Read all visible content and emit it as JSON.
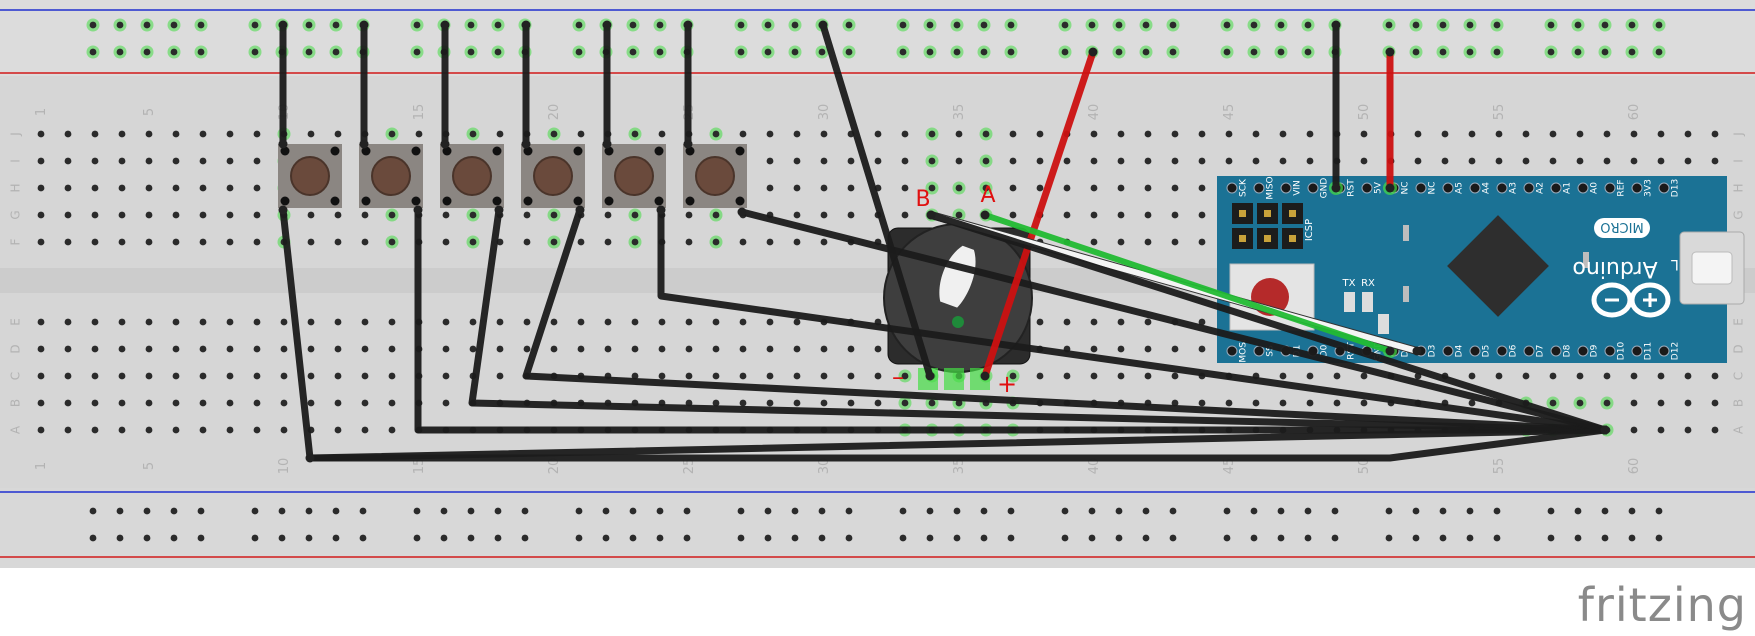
{
  "app": {
    "logo_text": "fritzing"
  },
  "colors": {
    "board": "#dcdcdc",
    "rail_blue": "#1f2fcf",
    "rail_red": "#d11a1a",
    "hole": "#2b2b2b",
    "hole_highlight": "#44dd44",
    "wire_black": "#1b1b1b",
    "wire_red": "#cc1111",
    "wire_green": "#22bb33",
    "wire_white": "#ffffff",
    "arduino": "#1b7295",
    "button_body": "#8b8682",
    "button_cap": "#6a4a3c"
  },
  "breadboard": {
    "column_numbers": [
      "1",
      "5",
      "10",
      "15",
      "20",
      "25",
      "30",
      "35",
      "40",
      "45",
      "50",
      "55",
      "60"
    ],
    "row_letters_top": [
      "J",
      "I",
      "H",
      "G",
      "F"
    ],
    "row_letters_bottom": [
      "E",
      "D",
      "C",
      "B",
      "A"
    ]
  },
  "encoder": {
    "pin_label_a": "A",
    "pin_label_b": "B",
    "minus_label": "–",
    "plus_label": "+"
  },
  "arduino": {
    "label_brand": "Arduino",
    "label_model": "MICRO",
    "label_icsp": "ICSP",
    "label_l": "L",
    "label_tx": "TX",
    "label_rx": "RX",
    "pins_top": [
      "SCK",
      "MISO",
      "VIN",
      "GND",
      "RST",
      "5V",
      "NC",
      "NC",
      "A5",
      "A4",
      "A3",
      "A2",
      "A1",
      "A0",
      "REF",
      "3V3",
      "D13"
    ],
    "pins_bottom": [
      "MOSI",
      "SS",
      "D1",
      "D0",
      "RST",
      "GND",
      "D2",
      "D3",
      "D4",
      "D5",
      "D6",
      "D7",
      "D8",
      "D9",
      "D10",
      "D11",
      "D12"
    ]
  },
  "buttons": {
    "count": "6"
  }
}
